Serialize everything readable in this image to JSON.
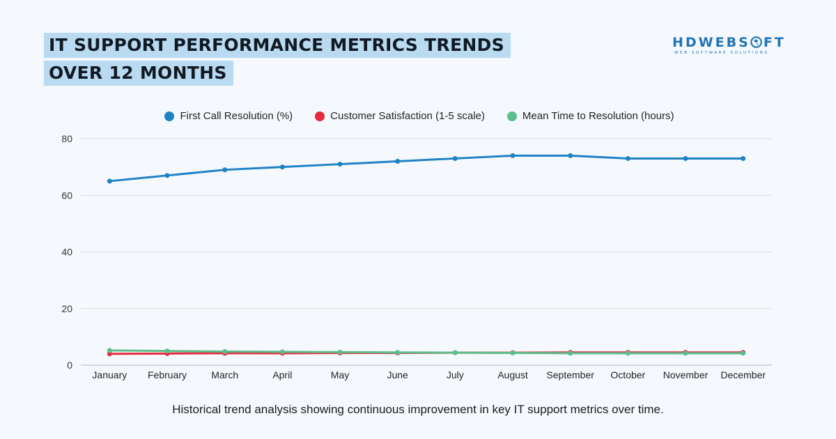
{
  "header": {
    "title_line1": "IT SUPPORT PERFORMANCE METRICS TRENDS",
    "title_line2": "OVER 12 MONTHS"
  },
  "logo": {
    "word": "HDWEBSOFT",
    "tagline": "WEB SOFTWARE SOLUTIONS"
  },
  "caption": "Historical trend analysis showing continuous improvement in key IT support metrics over time.",
  "chart_data": {
    "type": "line",
    "title": "IT SUPPORT PERFORMANCE METRICS TRENDS OVER 12 MONTHS",
    "xlabel": "",
    "ylabel": "",
    "ylim": [
      0,
      80
    ],
    "yticks": [
      0,
      20,
      40,
      60,
      80
    ],
    "grid": true,
    "legend_position": "top-center",
    "categories": [
      "January",
      "February",
      "March",
      "April",
      "May",
      "June",
      "July",
      "August",
      "September",
      "October",
      "November",
      "December"
    ],
    "series": [
      {
        "name": "First Call Resolution (%)",
        "color": "#1f82c5",
        "values": [
          65,
          67,
          69,
          70,
          71,
          72,
          73,
          74,
          74,
          73,
          73,
          73
        ]
      },
      {
        "name": "Customer Satisfaction (1-5 scale)",
        "color": "#e8293b",
        "values": [
          4.0,
          4.1,
          4.2,
          4.2,
          4.3,
          4.3,
          4.4,
          4.4,
          4.5,
          4.5,
          4.5,
          4.5
        ]
      },
      {
        "name": "Mean Time to Resolution (hours)",
        "color": "#5dbd8e",
        "values": [
          5.2,
          5.0,
          4.8,
          4.7,
          4.6,
          4.5,
          4.4,
          4.3,
          4.2,
          4.2,
          4.2,
          4.2
        ]
      }
    ]
  }
}
